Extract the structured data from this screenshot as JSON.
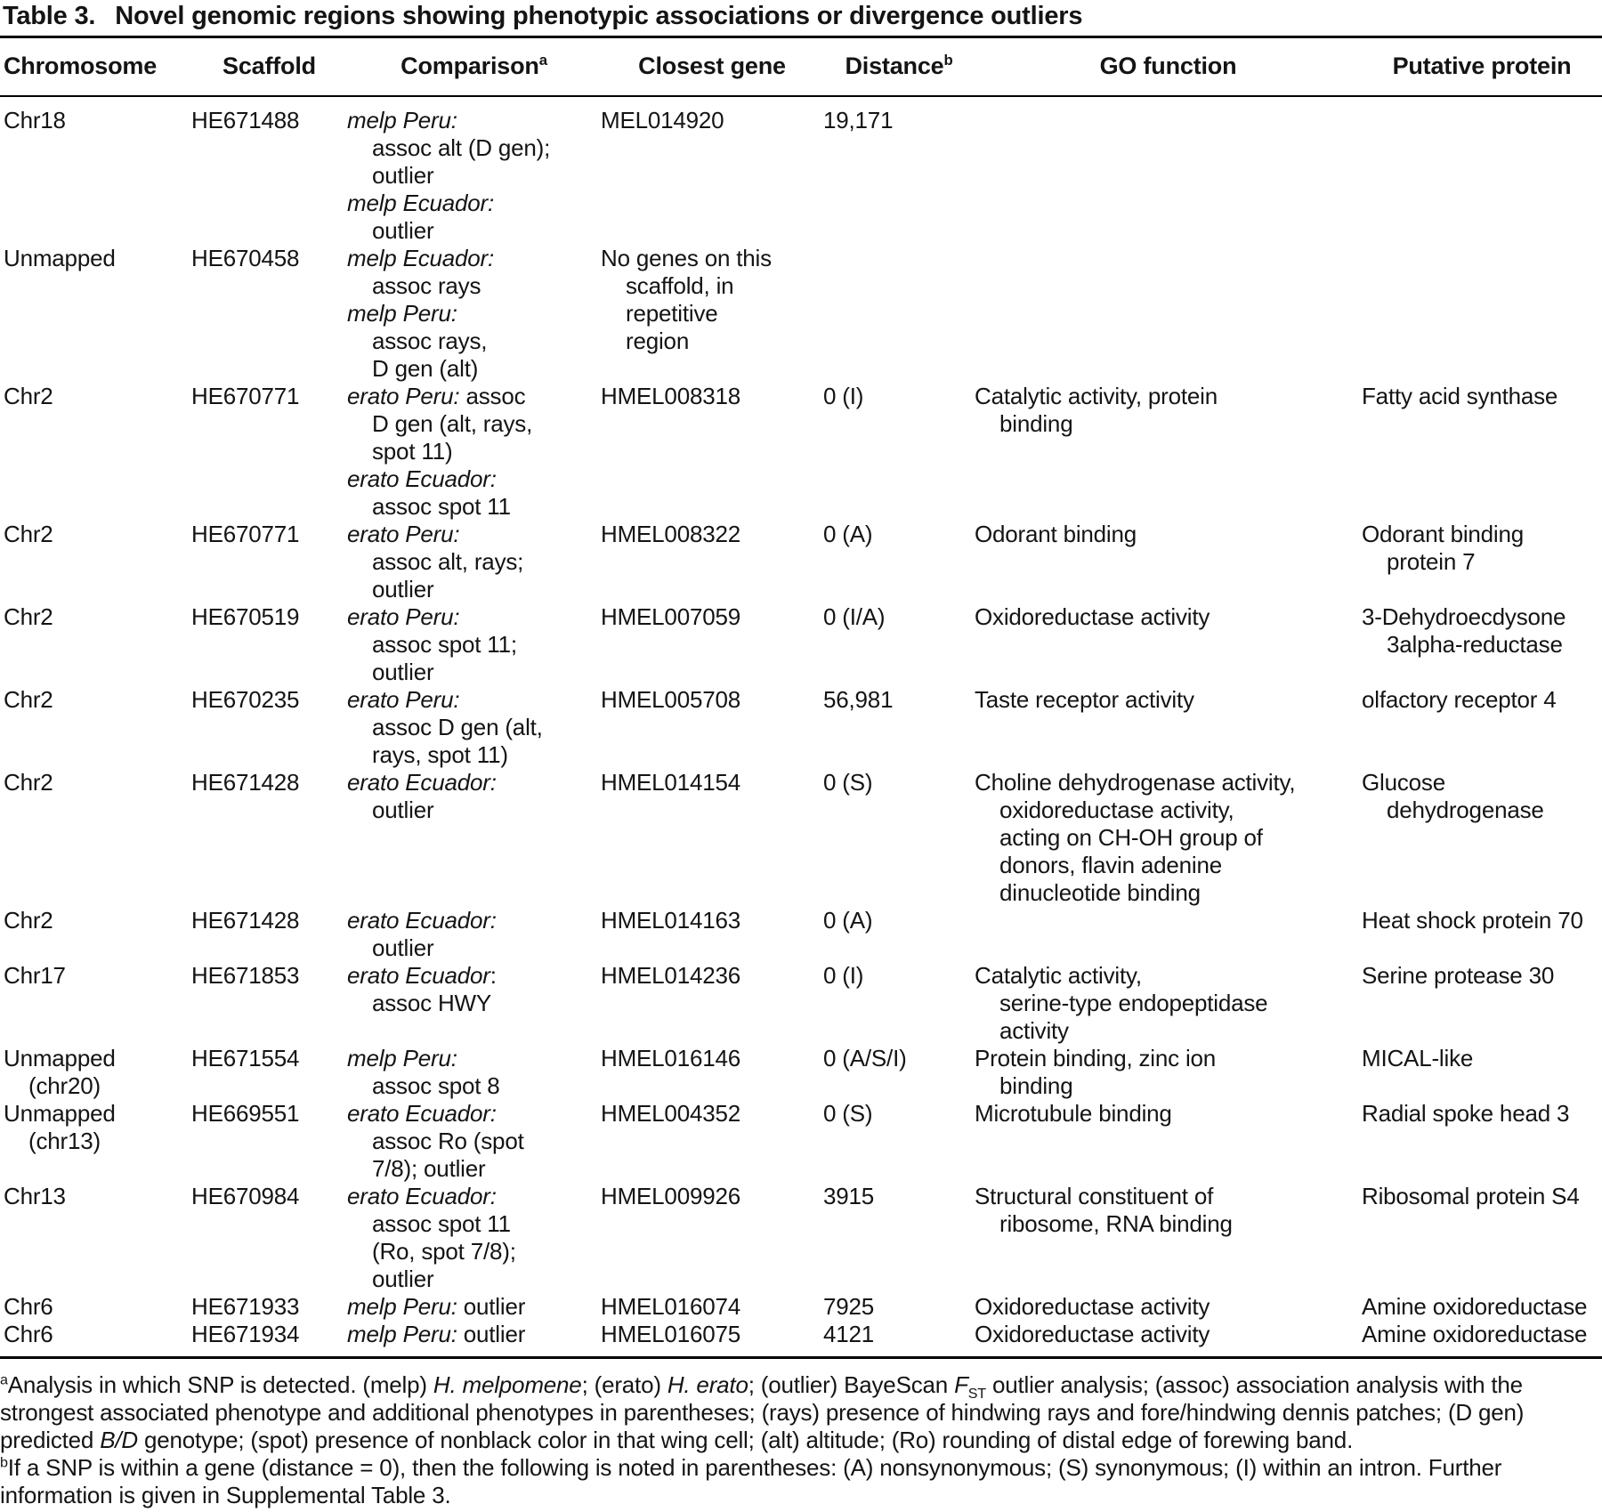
{
  "title": {
    "label": "Table 3.",
    "text": "Novel genomic regions showing phenotypic associations or divergence outliers"
  },
  "table": {
    "columns": [
      {
        "label": "Chromosome",
        "sup": ""
      },
      {
        "label": "Scaffold",
        "sup": ""
      },
      {
        "label": "Comparison",
        "sup": "a"
      },
      {
        "label": "Closest gene",
        "sup": ""
      },
      {
        "label": "Distance",
        "sup": "b"
      },
      {
        "label": "GO function",
        "sup": ""
      },
      {
        "label": "Putative protein",
        "sup": ""
      }
    ],
    "rows": [
      {
        "chromosome": [
          "Chr18"
        ],
        "scaffold": [
          "HE671488"
        ],
        "comparison": [
          {
            "s": [
              [
                "melp Peru:",
                1
              ]
            ]
          },
          {
            "i": 1,
            "s": [
              [
                "assoc alt (D gen);",
                0
              ]
            ]
          },
          {
            "i": 1,
            "s": [
              [
                "outlier",
                0
              ]
            ]
          },
          {
            "s": [
              [
                "melp Ecuador:",
                1
              ]
            ]
          },
          {
            "i": 1,
            "s": [
              [
                "outlier",
                0
              ]
            ]
          }
        ],
        "closest_gene": [
          "MEL014920"
        ],
        "distance": [
          "19,171"
        ],
        "go_function": [],
        "putative_protein": []
      },
      {
        "chromosome": [
          "Unmapped"
        ],
        "scaffold": [
          "HE670458"
        ],
        "comparison": [
          {
            "s": [
              [
                "melp Ecuador:",
                1
              ]
            ]
          },
          {
            "i": 1,
            "s": [
              [
                "assoc rays",
                0
              ]
            ]
          },
          {
            "s": [
              [
                "melp Peru:",
                1
              ]
            ]
          },
          {
            "i": 1,
            "s": [
              [
                "assoc rays,",
                0
              ]
            ]
          },
          {
            "i": 1,
            "s": [
              [
                "D gen (alt)",
                0
              ]
            ]
          }
        ],
        "closest_gene": [
          "No genes on this",
          {
            "i": 1,
            "s": [
              [
                "scaffold, in",
                0
              ]
            ]
          },
          {
            "i": 1,
            "s": [
              [
                "repetitive",
                0
              ]
            ]
          },
          {
            "i": 1,
            "s": [
              [
                "region",
                0
              ]
            ]
          }
        ],
        "distance": [],
        "go_function": [],
        "putative_protein": []
      },
      {
        "chromosome": [
          "Chr2"
        ],
        "scaffold": [
          "HE670771"
        ],
        "comparison": [
          {
            "s": [
              [
                "erato Peru:",
                1
              ],
              [
                " assoc",
                0
              ]
            ]
          },
          {
            "i": 1,
            "s": [
              [
                "D gen (alt, rays,",
                0
              ]
            ]
          },
          {
            "i": 1,
            "s": [
              [
                "spot 11)",
                0
              ]
            ]
          },
          {
            "s": [
              [
                "erato Ecuador:",
                1
              ]
            ]
          },
          {
            "i": 1,
            "s": [
              [
                "assoc spot 11",
                0
              ]
            ]
          }
        ],
        "closest_gene": [
          "HMEL008318"
        ],
        "distance": [
          "0 (I)"
        ],
        "go_function": [
          "Catalytic activity, protein",
          {
            "i": 1,
            "s": [
              [
                "binding",
                0
              ]
            ]
          }
        ],
        "putative_protein": [
          "Fatty acid synthase"
        ]
      },
      {
        "chromosome": [
          "Chr2"
        ],
        "scaffold": [
          "HE670771"
        ],
        "comparison": [
          {
            "s": [
              [
                "erato Peru:",
                1
              ]
            ]
          },
          {
            "i": 1,
            "s": [
              [
                "assoc alt, rays;",
                0
              ]
            ]
          },
          {
            "i": 1,
            "s": [
              [
                "outlier",
                0
              ]
            ]
          }
        ],
        "closest_gene": [
          "HMEL008322"
        ],
        "distance": [
          "0 (A)"
        ],
        "go_function": [
          "Odorant binding"
        ],
        "putative_protein": [
          "Odorant binding",
          {
            "i": 1,
            "s": [
              [
                "protein 7",
                0
              ]
            ]
          }
        ]
      },
      {
        "chromosome": [
          "Chr2"
        ],
        "scaffold": [
          "HE670519"
        ],
        "comparison": [
          {
            "s": [
              [
                "erato Peru:",
                1
              ]
            ]
          },
          {
            "i": 1,
            "s": [
              [
                "assoc spot 11;",
                0
              ]
            ]
          },
          {
            "i": 1,
            "s": [
              [
                "outlier",
                0
              ]
            ]
          }
        ],
        "closest_gene": [
          "HMEL007059"
        ],
        "distance": [
          "0 (I/A)"
        ],
        "go_function": [
          "Oxidoreductase activity"
        ],
        "putative_protein": [
          "3-Dehydroecdysone",
          {
            "i": 1,
            "s": [
              [
                "3alpha-reductase",
                0
              ]
            ]
          }
        ]
      },
      {
        "chromosome": [
          "Chr2"
        ],
        "scaffold": [
          "HE670235"
        ],
        "comparison": [
          {
            "s": [
              [
                "erato Peru:",
                1
              ]
            ]
          },
          {
            "i": 1,
            "s": [
              [
                "assoc D gen (alt,",
                0
              ]
            ]
          },
          {
            "i": 1,
            "s": [
              [
                "rays, spot 11)",
                0
              ]
            ]
          }
        ],
        "closest_gene": [
          "HMEL005708"
        ],
        "distance": [
          "56,981"
        ],
        "go_function": [
          "Taste receptor activity"
        ],
        "putative_protein": [
          "olfactory receptor 4"
        ]
      },
      {
        "chromosome": [
          "Chr2"
        ],
        "scaffold": [
          "HE671428"
        ],
        "comparison": [
          {
            "s": [
              [
                "erato Ecuador:",
                1
              ]
            ]
          },
          {
            "i": 1,
            "s": [
              [
                "outlier",
                0
              ]
            ]
          }
        ],
        "closest_gene": [
          "HMEL014154"
        ],
        "distance": [
          "0 (S)"
        ],
        "go_function": [
          "Choline dehydrogenase activity,",
          {
            "i": 1,
            "s": [
              [
                "oxidoreductase activity,",
                0
              ]
            ]
          },
          {
            "i": 1,
            "s": [
              [
                "acting on CH-OH group of",
                0
              ]
            ]
          },
          {
            "i": 1,
            "s": [
              [
                "donors, flavin adenine",
                0
              ]
            ]
          },
          {
            "i": 1,
            "s": [
              [
                "dinucleotide binding",
                0
              ]
            ]
          }
        ],
        "putative_protein": [
          "Glucose",
          {
            "i": 1,
            "s": [
              [
                "dehydrogenase",
                0
              ]
            ]
          }
        ]
      },
      {
        "chromosome": [
          "Chr2"
        ],
        "scaffold": [
          "HE671428"
        ],
        "comparison": [
          {
            "s": [
              [
                "erato Ecuador:",
                1
              ]
            ]
          },
          {
            "i": 1,
            "s": [
              [
                "outlier",
                0
              ]
            ]
          }
        ],
        "closest_gene": [
          "HMEL014163"
        ],
        "distance": [
          "0 (A)"
        ],
        "go_function": [],
        "putative_protein": [
          "Heat shock protein 70"
        ]
      },
      {
        "chromosome": [
          "Chr17"
        ],
        "scaffold": [
          "HE671853"
        ],
        "comparison": [
          {
            "s": [
              [
                "erato Ecuador",
                1
              ],
              [
                ":",
                0
              ]
            ]
          },
          {
            "i": 1,
            "s": [
              [
                "assoc HWY",
                0
              ]
            ]
          }
        ],
        "closest_gene": [
          "HMEL014236"
        ],
        "distance": [
          "0 (I)"
        ],
        "go_function": [
          "Catalytic activity,",
          {
            "i": 1,
            "s": [
              [
                "serine-type endopeptidase",
                0
              ]
            ]
          },
          {
            "i": 1,
            "s": [
              [
                "activity",
                0
              ]
            ]
          }
        ],
        "putative_protein": [
          "Serine protease 30"
        ]
      },
      {
        "chromosome": [
          "Unmapped",
          {
            "i": 1,
            "s": [
              [
                "(chr20)",
                0
              ]
            ]
          }
        ],
        "scaffold": [
          "HE671554"
        ],
        "comparison": [
          {
            "s": [
              [
                "melp Peru:",
                1
              ]
            ]
          },
          {
            "i": 1,
            "s": [
              [
                "assoc spot 8",
                0
              ]
            ]
          }
        ],
        "closest_gene": [
          "HMEL016146"
        ],
        "distance": [
          "0 (A/S/I)"
        ],
        "go_function": [
          "Protein binding, zinc ion",
          {
            "i": 1,
            "s": [
              [
                "binding",
                0
              ]
            ]
          }
        ],
        "putative_protein": [
          "MICAL-like"
        ]
      },
      {
        "chromosome": [
          "Unmapped",
          {
            "i": 1,
            "s": [
              [
                "(chr13)",
                0
              ]
            ]
          }
        ],
        "scaffold": [
          "HE669551"
        ],
        "comparison": [
          {
            "s": [
              [
                "erato Ecuador:",
                1
              ]
            ]
          },
          {
            "i": 1,
            "s": [
              [
                "assoc Ro (spot",
                0
              ]
            ]
          },
          {
            "i": 1,
            "s": [
              [
                "7/8); outlier",
                0
              ]
            ]
          }
        ],
        "closest_gene": [
          "HMEL004352"
        ],
        "distance": [
          "0 (S)"
        ],
        "go_function": [
          "Microtubule binding"
        ],
        "putative_protein": [
          "Radial spoke head 3"
        ]
      },
      {
        "chromosome": [
          "Chr13"
        ],
        "scaffold": [
          "HE670984"
        ],
        "comparison": [
          {
            "s": [
              [
                "erato Ecuador:",
                1
              ]
            ]
          },
          {
            "i": 1,
            "s": [
              [
                "assoc spot 11",
                0
              ]
            ]
          },
          {
            "i": 1,
            "s": [
              [
                "(Ro, spot 7/8);",
                0
              ]
            ]
          },
          {
            "i": 1,
            "s": [
              [
                "outlier",
                0
              ]
            ]
          }
        ],
        "closest_gene": [
          "HMEL009926"
        ],
        "distance": [
          "3915"
        ],
        "go_function": [
          "Structural constituent of",
          {
            "i": 1,
            "s": [
              [
                "ribosome, RNA binding",
                0
              ]
            ]
          }
        ],
        "putative_protein": [
          "Ribosomal protein S4"
        ]
      },
      {
        "chromosome": [
          "Chr6"
        ],
        "scaffold": [
          "HE671933"
        ],
        "comparison": [
          {
            "s": [
              [
                "melp Peru:",
                1
              ],
              [
                " outlier",
                0
              ]
            ]
          }
        ],
        "closest_gene": [
          "HMEL016074"
        ],
        "distance": [
          "7925"
        ],
        "go_function": [
          "Oxidoreductase activity"
        ],
        "putative_protein": [
          "Amine oxidoreductase"
        ]
      },
      {
        "chromosome": [
          "Chr6"
        ],
        "scaffold": [
          "HE671934"
        ],
        "comparison": [
          {
            "s": [
              [
                "melp Peru:",
                1
              ],
              [
                " outlier",
                0
              ]
            ]
          }
        ],
        "closest_gene": [
          "HMEL016075"
        ],
        "distance": [
          "4121"
        ],
        "go_function": [
          "Oxidoreductase activity"
        ],
        "putative_protein": [
          "Amine oxidoreductase"
        ]
      }
    ]
  },
  "footnotes": [
    [
      [
        "a",
        2
      ],
      [
        "Analysis in which SNP is detected. (melp) ",
        0
      ],
      [
        "H. melpomene",
        1
      ],
      [
        "; (erato) ",
        0
      ],
      [
        "H. erato",
        1
      ],
      [
        "; (outlier) BayeScan ",
        0
      ],
      [
        "F",
        1
      ],
      [
        "ST",
        3
      ],
      [
        " outlier analysis; (assoc) association analysis with the strongest associated phenotype and additional phenotypes in parentheses; (rays) presence of hindwing rays and fore/hindwing dennis patches; (D gen) predicted ",
        0
      ],
      [
        "B/D",
        1
      ],
      [
        " genotype; (spot) presence of nonblack color in that wing cell; (alt) altitude; (Ro) rounding of distal edge of forewing band.",
        0
      ]
    ],
    [
      [
        "b",
        2
      ],
      [
        "If a SNP is within a gene (distance = 0), then the following is noted in parentheses: (A) nonsynonymous; (S) synonymous; (I) within an intron. Further information is given in Supplemental Table 3.",
        0
      ]
    ]
  ]
}
